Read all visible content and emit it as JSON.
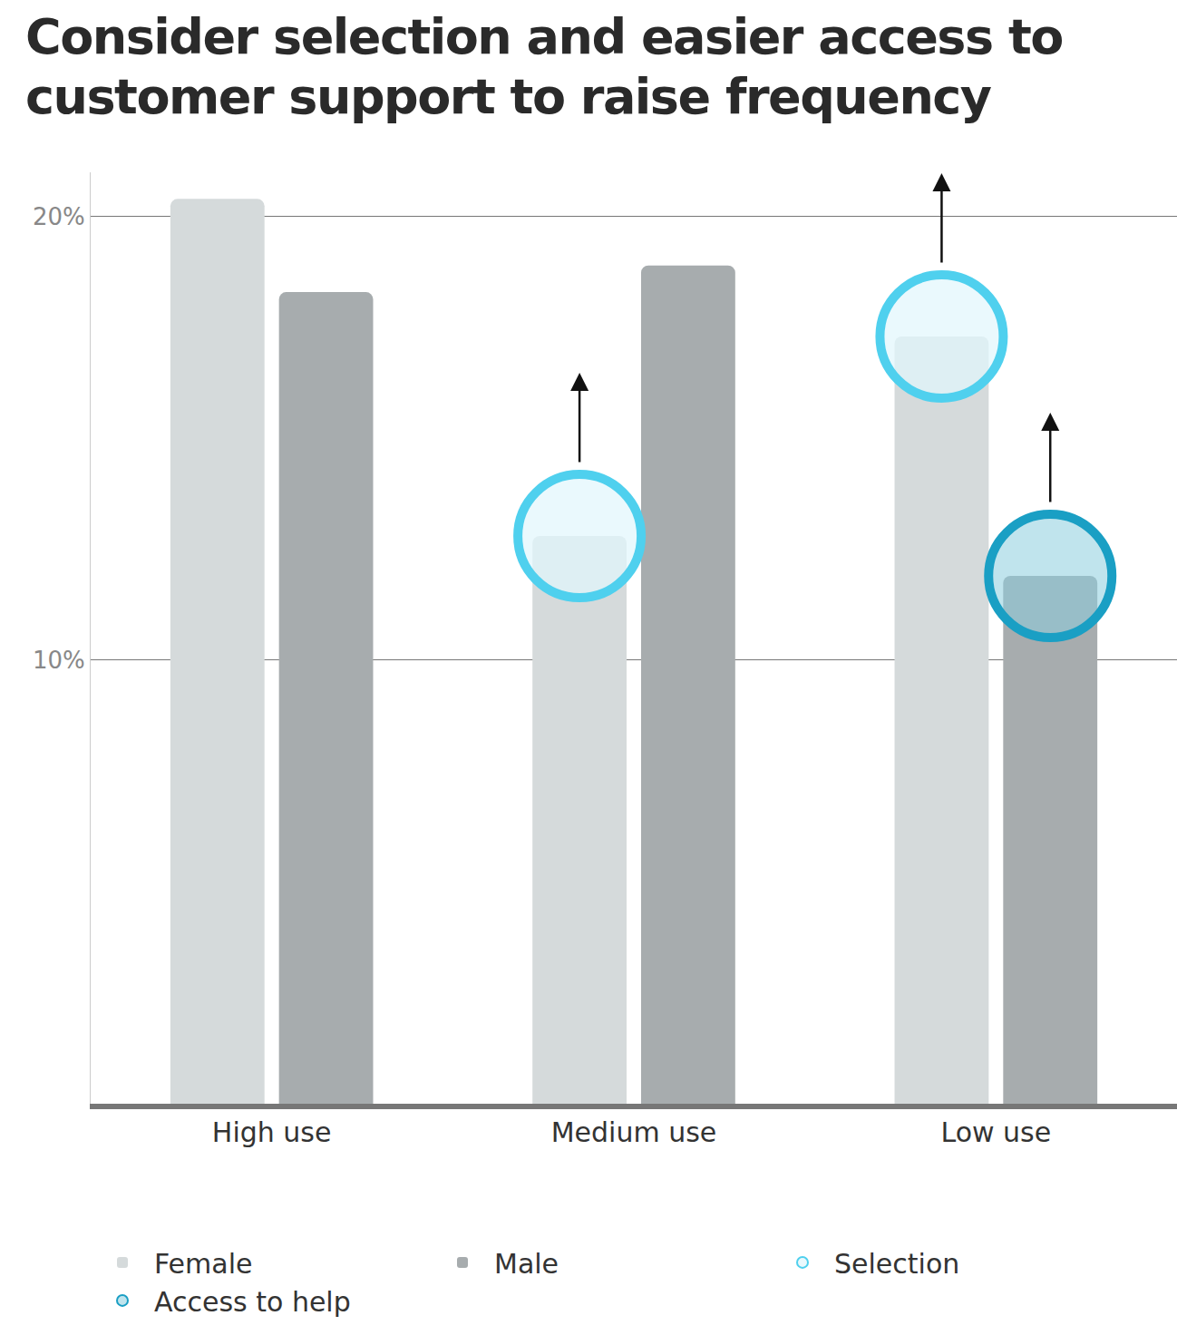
{
  "chart_data": {
    "type": "bar",
    "title": "Consider selection and easier access to customer support to raise frequency",
    "categories": [
      "High use",
      "Medium use",
      "Low use"
    ],
    "series": [
      {
        "name": "Female",
        "color": "#d5dadb",
        "values": [
          20.4,
          12.8,
          17.3
        ]
      },
      {
        "name": "Male",
        "color": "#a7acae",
        "values": [
          18.3,
          18.9,
          11.9
        ]
      },
      {
        "name": "Selection",
        "type": "scatter",
        "marker": "circle",
        "color": "#4fd0ee",
        "values": [
          null,
          12.8,
          17.3
        ]
      },
      {
        "name": "Access to help",
        "type": "scatter",
        "marker": "circle",
        "color": "#1a9fc4",
        "values": [
          null,
          null,
          11.9
        ]
      }
    ],
    "ylim": [
      0,
      21
    ],
    "yticks": [
      {
        "value": 10,
        "label": "10%"
      },
      {
        "value": 20,
        "label": "20%"
      }
    ],
    "grid": true,
    "legend": "bottom"
  }
}
